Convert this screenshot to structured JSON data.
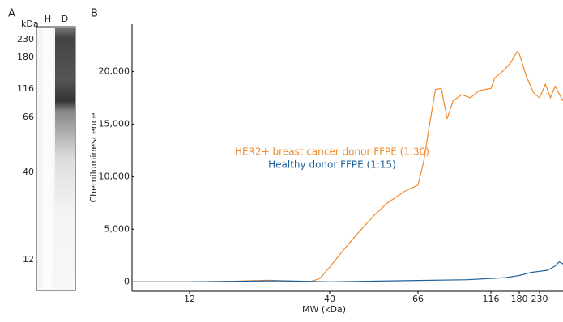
{
  "panel_labels": [
    "A",
    "B"
  ],
  "gel": {
    "unit_label": "kDa",
    "lanes": [
      "H",
      "D"
    ],
    "markers": [
      230,
      180,
      116,
      66,
      40,
      12
    ]
  },
  "chart_data": {
    "type": "line",
    "xlabel": "MW (kDa)",
    "ylabel": "Chemiluminescence",
    "xlim": [
      7,
      290
    ],
    "xticks": [
      12,
      40,
      66,
      116,
      180,
      230
    ],
    "ylim": [
      -900,
      24500
    ],
    "yticks": [
      0,
      {
        "value": 5000,
        "label": "5,000"
      },
      {
        "value": 10000,
        "label": "10,000"
      },
      {
        "value": 15000,
        "label": "15,000"
      },
      {
        "value": 20000,
        "label": "20,000"
      }
    ],
    "series": [
      {
        "name": "HER2+ breast cancer donor FFPE (1:30)",
        "color": "#f08a2c",
        "x": [
          7,
          12,
          20,
          28,
          32,
          36,
          38,
          40,
          44,
          48,
          53,
          57,
          62,
          66,
          70,
          74,
          78,
          82,
          86,
          90,
          96,
          102,
          108,
          116,
          125,
          142,
          160,
          175,
          180,
          198,
          215,
          230,
          245,
          258,
          270,
          290
        ],
        "values": [
          0,
          0,
          50,
          150,
          50,
          0,
          300,
          1400,
          3000,
          4500,
          6300,
          7500,
          8600,
          9200,
          11500,
          15000,
          18300,
          18400,
          15500,
          17200,
          17800,
          17500,
          18200,
          18400,
          19400,
          20000,
          20800,
          21900,
          21700,
          19500,
          18000,
          17500,
          18800,
          17500,
          18600,
          17200
        ]
      },
      {
        "name": "Healthy donor FFPE (1:15)",
        "color": "#1f5f9a",
        "x": [
          7,
          12,
          20,
          30,
          40,
          60,
          100,
          150,
          180,
          210,
          230,
          250,
          270,
          280,
          290
        ],
        "values": [
          0,
          0,
          50,
          100,
          0,
          100,
          200,
          400,
          600,
          900,
          1000,
          1100,
          1500,
          1900,
          1700
        ]
      }
    ]
  }
}
